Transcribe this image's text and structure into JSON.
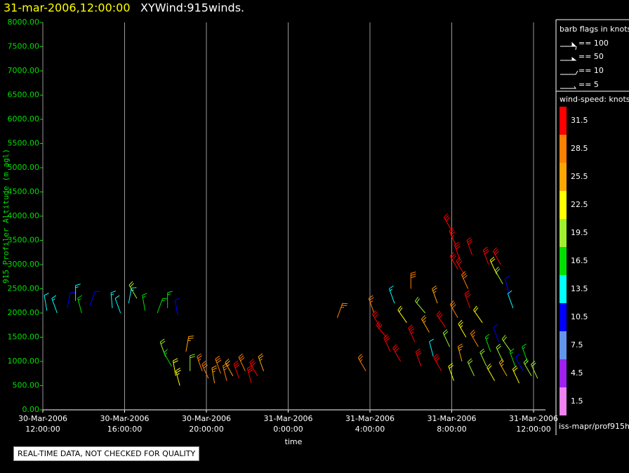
{
  "chart_data": {
    "type": "barbs",
    "title": "31-mar-2006,12:00:00",
    "subtitle": "XYWind:915winds.",
    "y_label": "915 Profiler Altitude (m agl)",
    "x_label": "time",
    "xlim": [
      0,
      24.6
    ],
    "ylim": [
      0,
      8000
    ],
    "xticks": [
      {
        "value": 0,
        "label": "30-Mar-2006\n12:00:00"
      },
      {
        "value": 4,
        "label": "30-Mar-2006\n16:00:00"
      },
      {
        "value": 8,
        "label": "30-Mar-2006\n20:00:00"
      },
      {
        "value": 12,
        "label": "31-Mar-2006\n0:00:00"
      },
      {
        "value": 16,
        "label": "31-Mar-2006\n4:00:00"
      },
      {
        "value": 20,
        "label": "31-Mar-2006\n8:00:00"
      },
      {
        "value": 24,
        "label": "31-Mar-2006\n12:00:00"
      }
    ],
    "yticks": [
      {
        "value": 0,
        "label": "0.00"
      },
      {
        "value": 500,
        "label": "500.00"
      },
      {
        "value": 1000,
        "label": "1000.00"
      },
      {
        "value": 1500,
        "label": "1500.00"
      },
      {
        "value": 2000,
        "label": "2000.00"
      },
      {
        "value": 2500,
        "label": "2500.00"
      },
      {
        "value": 3000,
        "label": "3000.00"
      },
      {
        "value": 3500,
        "label": "3500.00"
      },
      {
        "value": 4000,
        "label": "4000.00"
      },
      {
        "value": 4500,
        "label": "4500.00"
      },
      {
        "value": 5000,
        "label": "5000.00"
      },
      {
        "value": 5500,
        "label": "5500.00"
      },
      {
        "value": 6000,
        "label": "6000.00"
      },
      {
        "value": 6500,
        "label": "6500.00"
      },
      {
        "value": 7000,
        "label": "7000.00"
      },
      {
        "value": 7500,
        "label": "7500.00"
      },
      {
        "value": 8000,
        "label": "8000.00"
      }
    ],
    "grid": true,
    "barb_legend": {
      "title": "barb flags in knots",
      "labels": [
        "== 100",
        "== 50",
        "== 10",
        "== 5"
      ]
    },
    "colorbar": {
      "title": "wind-speed: knots",
      "labels": [
        1.5,
        4.5,
        7.5,
        10.5,
        13.5,
        16.5,
        19.5,
        22.5,
        25.5,
        28.5,
        31.5
      ],
      "colors": [
        "#ee82ee",
        "#a020f0",
        "#6495ed",
        "#0000ff",
        "#00ffff",
        "#00e000",
        "#a0f030",
        "#ffff00",
        "#ffa500",
        "#ff8000",
        "#ff0000"
      ]
    },
    "x": [
      0.2,
      0.7,
      1.2,
      1.6,
      1.9,
      2.3,
      3.4,
      3.8,
      4.2,
      4.6,
      5.0,
      5.6,
      6.1,
      6.6,
      6.0,
      6.3,
      6.5,
      6.7,
      7.0,
      7.2,
      7.8,
      8.1,
      8.4,
      8.7,
      9.0,
      9.3,
      9.6,
      9.9,
      10.2,
      10.5,
      10.8,
      14.4,
      15.8,
      16.2,
      16.5,
      16.8,
      17.0,
      17.2,
      17.5,
      17.8,
      18.0,
      18.2,
      18.5,
      18.7,
      18.9,
      19.1,
      19.3,
      19.5,
      19.7,
      19.9,
      20.1,
      20.3,
      20.5,
      20.7,
      20.9,
      21.1,
      21.3,
      21.5,
      21.7,
      21.9,
      22.1,
      22.3,
      22.5,
      22.7,
      22.9,
      23.1,
      23.3,
      23.5,
      23.7,
      23.9,
      24.2,
      20.0,
      20.2,
      20.4,
      20.6,
      20.8,
      21.0,
      20.3,
      21.8,
      22.2,
      22.5,
      22.8,
      23.0,
      22.4
    ],
    "y": [
      2050,
      2000,
      2100,
      2250,
      2000,
      2150,
      2100,
      2000,
      2200,
      2300,
      2050,
      2000,
      2100,
      1950,
      1100,
      900,
      700,
      500,
      1200,
      800,
      800,
      650,
      550,
      750,
      600,
      700,
      650,
      800,
      550,
      700,
      800,
      1900,
      800,
      2000,
      1700,
      1500,
      1200,
      2200,
      1000,
      1800,
      2500,
      1400,
      900,
      2000,
      1600,
      1100,
      2200,
      800,
      1700,
      1300,
      600,
      1900,
      1000,
      1500,
      2100,
      700,
      1300,
      1800,
      900,
      1200,
      600,
      1400,
      1000,
      700,
      1200,
      900,
      550,
      800,
      1000,
      700,
      650,
      3700,
      3400,
      3100,
      2800,
      2500,
      3200,
      2900,
      3000,
      2800,
      2600,
      2400,
      2100,
      3000
    ],
    "speed": [
      12,
      14,
      11,
      13,
      15,
      10,
      14,
      12,
      13,
      18,
      17,
      16,
      15,
      10,
      20,
      17,
      21,
      23,
      24,
      19,
      27,
      28,
      26,
      28,
      27,
      26,
      31,
      29,
      32,
      30,
      24,
      27,
      27,
      27,
      31,
      32,
      30,
      14,
      31,
      22,
      29,
      33,
      31,
      20,
      24,
      12,
      26,
      30,
      32,
      19,
      22,
      29,
      26,
      23,
      31,
      18,
      27,
      22,
      20,
      16,
      21,
      9,
      20,
      24,
      19,
      17,
      22,
      11,
      16,
      20,
      19,
      32,
      33,
      31,
      32,
      28,
      31,
      30,
      32,
      22,
      19,
      11,
      12,
      30
    ],
    "direction": [
      350,
      340,
      10,
      0,
      345,
      20,
      355,
      340,
      10,
      330,
      350,
      20,
      0,
      350,
      340,
      330,
      350,
      345,
      10,
      0,
      340,
      335,
      350,
      340,
      345,
      330,
      340,
      335,
      345,
      330,
      340,
      20,
      330,
      340,
      330,
      320,
      335,
      340,
      330,
      325,
      0,
      335,
      340,
      320,
      330,
      345,
      340,
      330,
      325,
      335,
      340,
      330,
      345,
      330,
      340,
      335,
      330,
      325,
      335,
      340,
      330,
      340,
      335,
      330,
      325,
      340,
      335,
      330,
      340,
      330,
      335,
      330,
      335,
      340,
      330,
      335,
      340,
      330,
      340,
      335,
      330,
      345,
      340,
      330
    ]
  },
  "footer": {
    "note": "REAL-TIME DATA, NOT CHECKED FOR QUALITY",
    "source": "iss-mapr/prof915h"
  }
}
